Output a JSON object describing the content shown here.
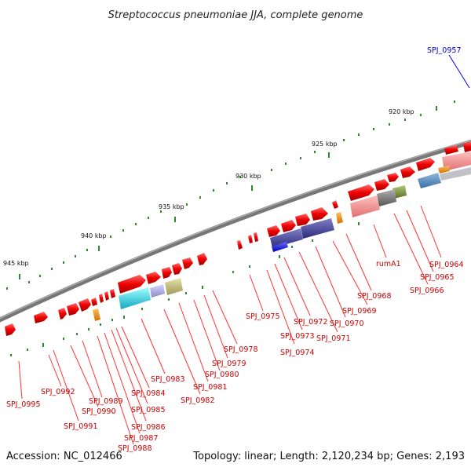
{
  "title": "Streptococcus pneumoniae JJA, complete genome",
  "footer": {
    "accession": "Accession: NC_012466",
    "summary": "Topology: linear; Length: 2,120,234 bp; Genes: 2,193"
  },
  "ticks": [
    "920 kbp",
    "925 kbp",
    "930 kbp",
    "935 kbp",
    "940 kbp",
    "945 kbp"
  ],
  "genes": [
    {
      "label": "SPJ_0957",
      "color": "#0000cc"
    },
    {
      "label": "SPJ_0964",
      "color": "#cc0000"
    },
    {
      "label": "SPJ_0965",
      "color": "#cc0000"
    },
    {
      "label": "SPJ_0966",
      "color": "#cc0000"
    },
    {
      "label": "rumA1",
      "color": "#cc0000"
    },
    {
      "label": "SPJ_0968",
      "color": "#cc0000"
    },
    {
      "label": "SPJ_0969",
      "color": "#cc0000"
    },
    {
      "label": "SPJ_0970",
      "color": "#cc0000"
    },
    {
      "label": "SPJ_0971",
      "color": "#cc0000"
    },
    {
      "label": "SPJ_0972",
      "color": "#cc0000"
    },
    {
      "label": "SPJ_0973",
      "color": "#cc0000"
    },
    {
      "label": "SPJ_0974",
      "color": "#cc0000"
    },
    {
      "label": "SPJ_0975",
      "color": "#cc0000"
    },
    {
      "label": "SPJ_0978",
      "color": "#cc0000"
    },
    {
      "label": "SPJ_0979",
      "color": "#cc0000"
    },
    {
      "label": "SPJ_0980",
      "color": "#cc0000"
    },
    {
      "label": "SPJ_0981",
      "color": "#cc0000"
    },
    {
      "label": "SPJ_0982",
      "color": "#cc0000"
    },
    {
      "label": "SPJ_0983",
      "color": "#cc0000"
    },
    {
      "label": "SPJ_0984",
      "color": "#cc0000"
    },
    {
      "label": "SPJ_0985",
      "color": "#cc0000"
    },
    {
      "label": "SPJ_0986",
      "color": "#cc0000"
    },
    {
      "label": "SPJ_0987",
      "color": "#cc0000"
    },
    {
      "label": "SPJ_0988",
      "color": "#cc0000"
    },
    {
      "label": "SPJ_0989",
      "color": "#cc0000"
    },
    {
      "label": "SPJ_0990",
      "color": "#cc0000"
    },
    {
      "label": "SPJ_0991",
      "color": "#cc0000"
    },
    {
      "label": "SPJ_0992",
      "color": "#cc0000"
    },
    {
      "label": "SPJ_0995",
      "color": "#cc0000"
    }
  ],
  "colors": {
    "backbone": "#7a7a7a",
    "tick": "#2e8b2e",
    "gene_forward": "#ee0000",
    "label_line": "#ff3333",
    "highlight_line": "#0000ff"
  }
}
